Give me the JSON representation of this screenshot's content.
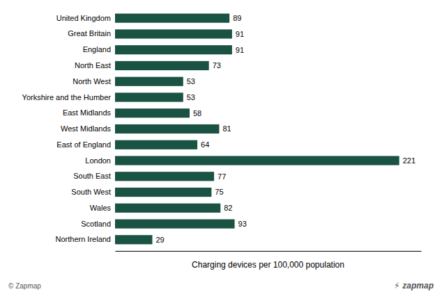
{
  "chart_data": {
    "type": "bar",
    "orientation": "horizontal",
    "categories": [
      "United Kingdom",
      "Great Britain",
      "England",
      "North East",
      "North West",
      "Yorkshire and the Humber",
      "East Midlands",
      "West Midlands",
      "East of England",
      "London",
      "South East",
      "South West",
      "Wales",
      "Scotland",
      "Northern Ireland"
    ],
    "values": [
      89,
      91,
      91,
      73,
      53,
      53,
      58,
      81,
      64,
      221,
      77,
      75,
      82,
      93,
      29
    ],
    "color": "#1a5244",
    "xlabel": "Charging devices per 100,000 population",
    "xlim": [
      0,
      238
    ],
    "tick_labels": "y",
    "data_labels": true,
    "annotations": [
      "© Zapmap",
      "⚡",
      "zapmap"
    ]
  }
}
